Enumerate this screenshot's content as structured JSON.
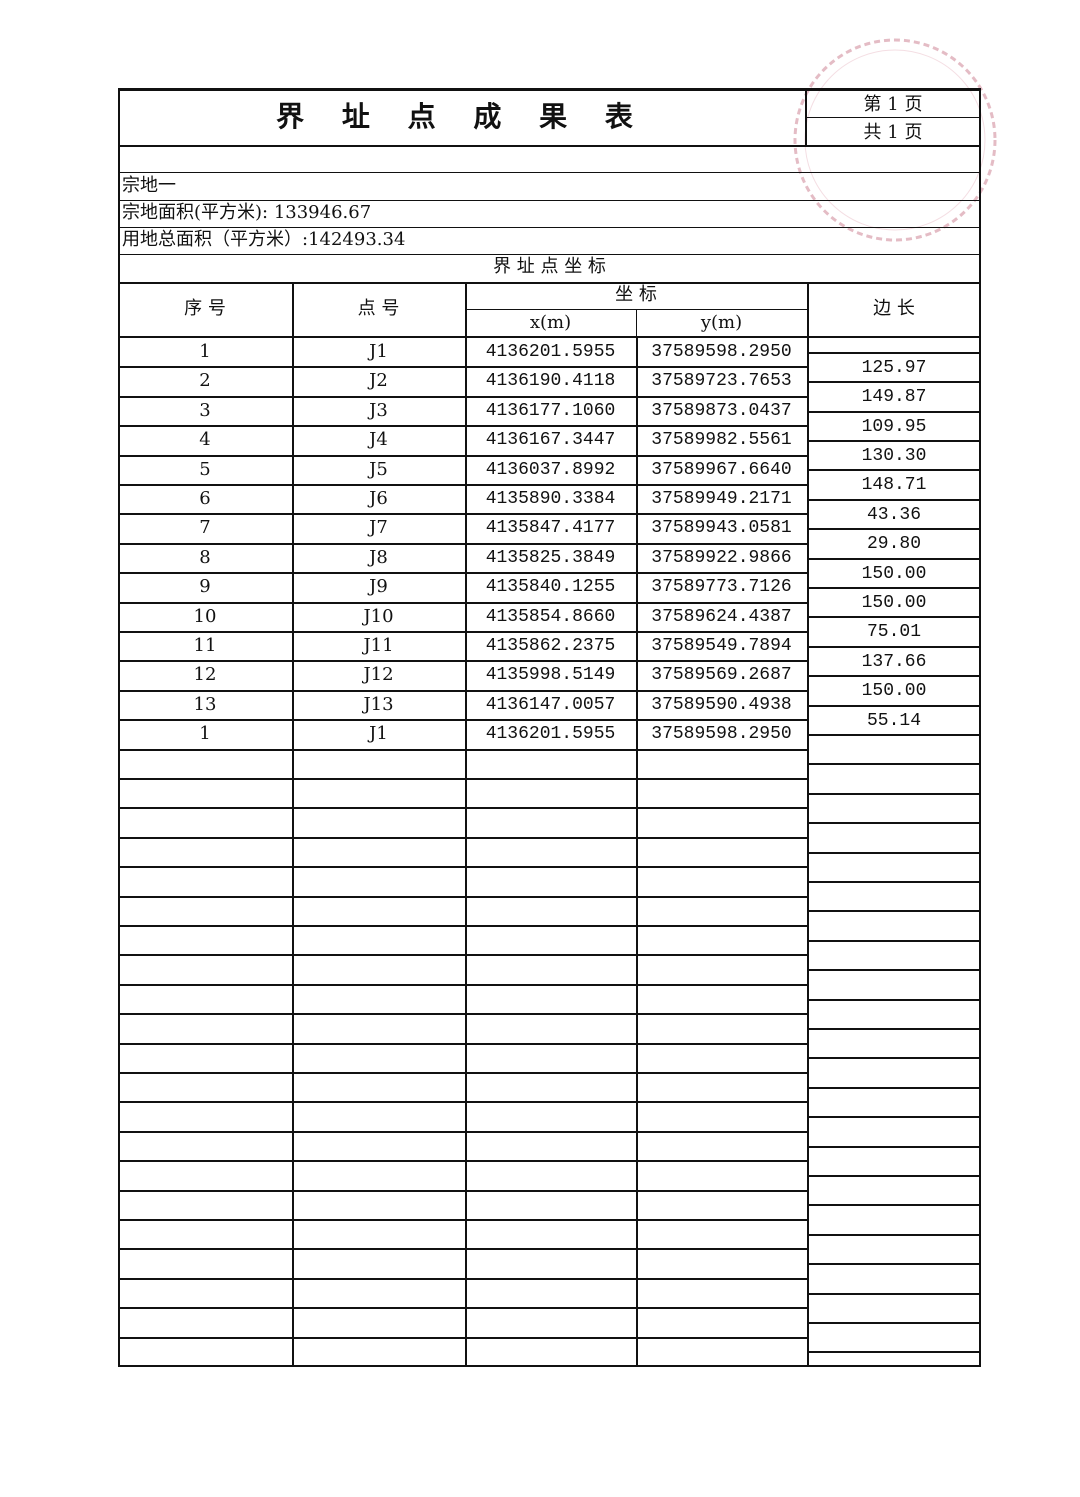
{
  "header": {
    "title": "界 址 点 成 果 表",
    "page_current": "第 1 页",
    "page_total": "共 1 页"
  },
  "parcel": {
    "name": "宗地一",
    "parcel_area": "宗地面积(平方米): 133946.67",
    "total_area": "用地总面积（平方米）:142493.34"
  },
  "table": {
    "section_title": "界 址 点 坐 标",
    "col_seq": "序 号",
    "col_point": "点 号",
    "col_coord": "坐 标",
    "col_x": "x(m)",
    "col_y": "y(m)",
    "col_edge": "边 长",
    "rows": [
      {
        "seq": "1",
        "point": "J1",
        "x": "4136201.5955",
        "y": "37589598.2950"
      },
      {
        "seq": "2",
        "point": "J2",
        "x": "4136190.4118",
        "y": "37589723.7653"
      },
      {
        "seq": "3",
        "point": "J3",
        "x": "4136177.1060",
        "y": "37589873.0437"
      },
      {
        "seq": "4",
        "point": "J4",
        "x": "4136167.3447",
        "y": "37589982.5561"
      },
      {
        "seq": "5",
        "point": "J5",
        "x": "4136037.8992",
        "y": "37589967.6640"
      },
      {
        "seq": "6",
        "point": "J6",
        "x": "4135890.3384",
        "y": "37589949.2171"
      },
      {
        "seq": "7",
        "point": "J7",
        "x": "4135847.4177",
        "y": "37589943.0581"
      },
      {
        "seq": "8",
        "point": "J8",
        "x": "4135825.3849",
        "y": "37589922.9866"
      },
      {
        "seq": "9",
        "point": "J9",
        "x": "4135840.1255",
        "y": "37589773.7126"
      },
      {
        "seq": "10",
        "point": "J10",
        "x": "4135854.8660",
        "y": "37589624.4387"
      },
      {
        "seq": "11",
        "point": "J11",
        "x": "4135862.2375",
        "y": "37589549.7894"
      },
      {
        "seq": "12",
        "point": "J12",
        "x": "4135998.5149",
        "y": "37589569.2687"
      },
      {
        "seq": "13",
        "point": "J13",
        "x": "4136147.0057",
        "y": "37589590.4938"
      },
      {
        "seq": "1",
        "point": "J1",
        "x": "4136201.5955",
        "y": "37589598.2950"
      }
    ],
    "edges": [
      "125.97",
      "149.87",
      "109.95",
      "130.30",
      "148.71",
      "43.36",
      "29.80",
      "150.00",
      "150.00",
      "75.01",
      "137.66",
      "150.00",
      "55.14"
    ]
  },
  "colors": {
    "ink": "#111111",
    "stamp": "#d9a0ad"
  }
}
